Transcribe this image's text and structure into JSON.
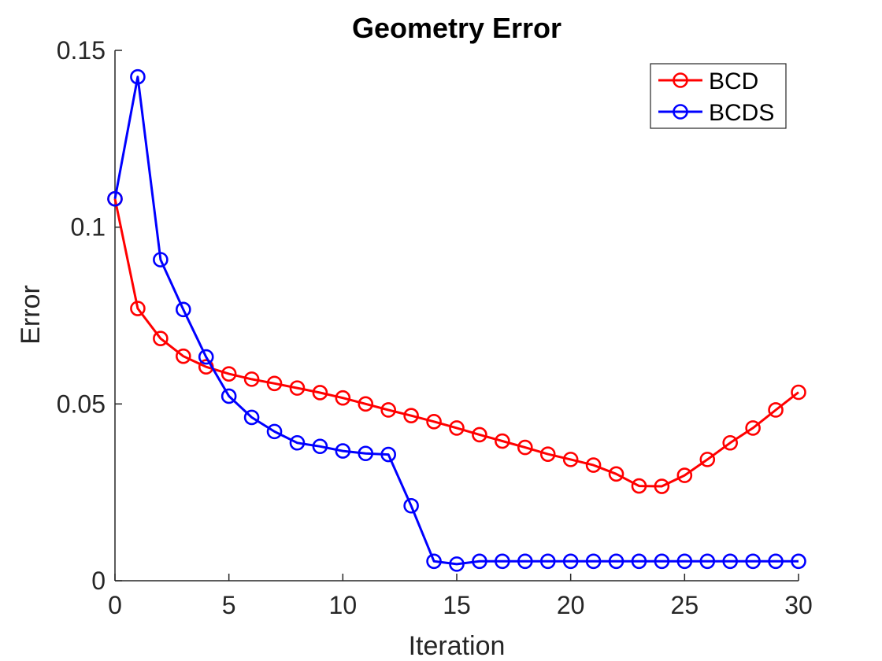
{
  "chart_data": {
    "type": "line",
    "title": "Geometry Error",
    "xlabel": "Iteration",
    "ylabel": "Error",
    "xlim": [
      0,
      30
    ],
    "ylim": [
      0,
      0.15
    ],
    "xticks": [
      0,
      5,
      10,
      15,
      20,
      25,
      30
    ],
    "xtick_labels": [
      "0",
      "5",
      "10",
      "15",
      "20",
      "25",
      "30"
    ],
    "yticks": [
      0,
      0.05,
      0.1,
      0.15
    ],
    "ytick_labels": [
      "0",
      "0.05",
      "0.1",
      "0.15"
    ],
    "grid": false,
    "legend_position": "top-right",
    "series": [
      {
        "name": "BCD",
        "color": "#ff0000",
        "marker": "circle",
        "x": [
          0,
          1,
          2,
          3,
          4,
          5,
          6,
          7,
          8,
          9,
          10,
          11,
          12,
          13,
          14,
          15,
          16,
          17,
          18,
          19,
          20,
          21,
          22,
          23,
          24,
          25,
          26,
          27,
          28,
          29,
          30
        ],
        "values": [
          0.108,
          0.077,
          0.0685,
          0.0635,
          0.0605,
          0.0585,
          0.057,
          0.0558,
          0.0545,
          0.0532,
          0.0517,
          0.05,
          0.0483,
          0.0467,
          0.045,
          0.0432,
          0.0413,
          0.0395,
          0.0377,
          0.0358,
          0.0343,
          0.0327,
          0.0302,
          0.0268,
          0.0267,
          0.0298,
          0.0343,
          0.039,
          0.0432,
          0.0483,
          0.0533
        ]
      },
      {
        "name": "BCDS",
        "color": "#0000ff",
        "marker": "circle",
        "x": [
          0,
          1,
          2,
          3,
          4,
          5,
          6,
          7,
          8,
          9,
          10,
          11,
          12,
          13,
          14,
          15,
          16,
          17,
          18,
          19,
          20,
          21,
          22,
          23,
          24,
          25,
          26,
          27,
          28,
          29,
          30
        ],
        "values": [
          0.108,
          0.1425,
          0.0908,
          0.0767,
          0.0633,
          0.0522,
          0.0462,
          0.0422,
          0.039,
          0.038,
          0.0367,
          0.036,
          0.0357,
          0.0212,
          0.0055,
          0.0047,
          0.0055,
          0.0055,
          0.0055,
          0.0055,
          0.0055,
          0.0055,
          0.0055,
          0.0055,
          0.0055,
          0.0055,
          0.0055,
          0.0055,
          0.0055,
          0.0055,
          0.0055
        ]
      }
    ]
  }
}
